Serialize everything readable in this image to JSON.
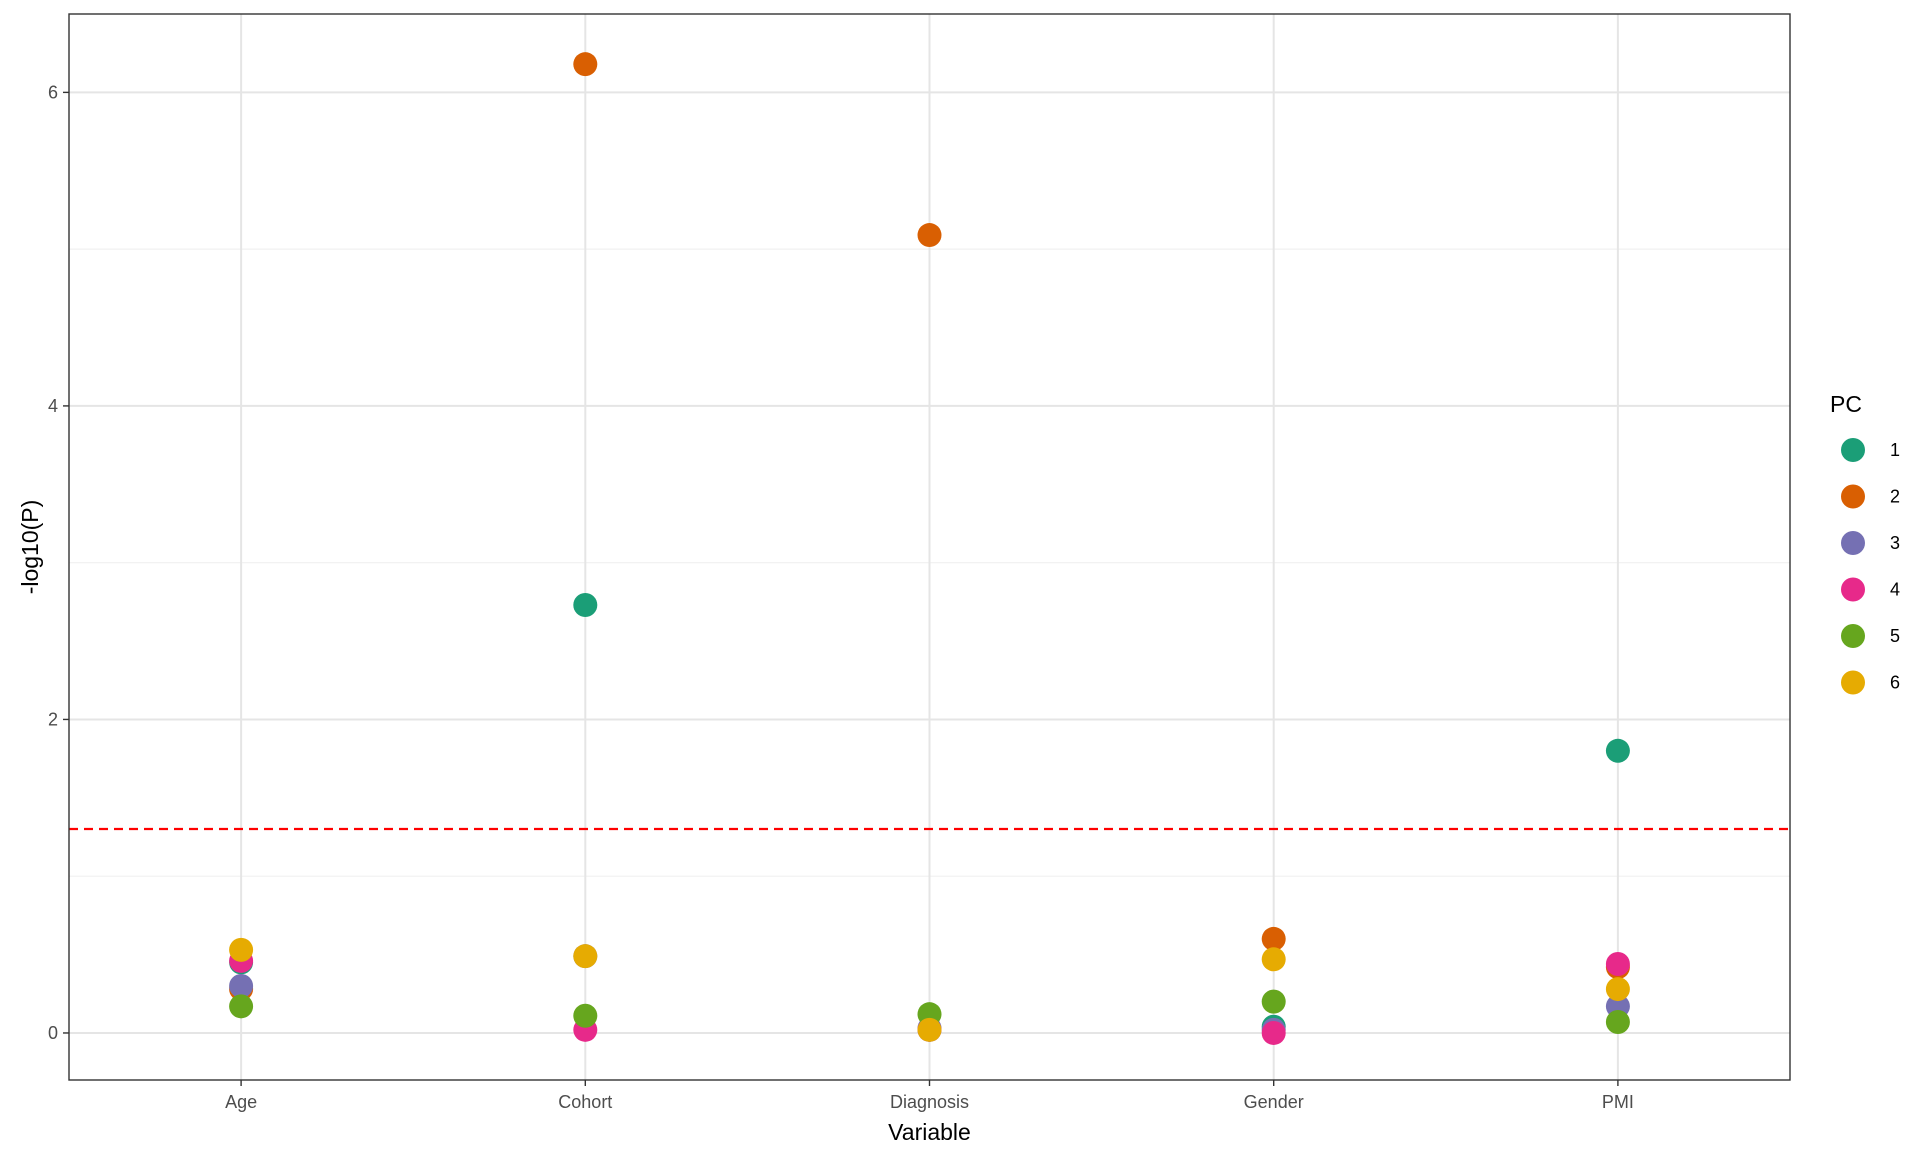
{
  "chart_data": {
    "type": "scatter",
    "xlabel": "Variable",
    "ylabel": "-log10(P)",
    "categories": [
      "Age",
      "Cohort",
      "Diagnosis",
      "Gender",
      "PMI"
    ],
    "ylim": [
      -0.3,
      6.5
    ],
    "yticks": [
      0,
      2,
      4,
      6
    ],
    "grid": true,
    "threshold": {
      "value": 1.301,
      "color": "#ff0000",
      "style": "dashed"
    },
    "legend": {
      "title": "PC",
      "placement": "right"
    },
    "series": [
      {
        "name": "1",
        "color": "#1b9e77",
        "values": [
          0.45,
          2.73,
          0.02,
          0.04,
          1.8
        ]
      },
      {
        "name": "2",
        "color": "#d95f02",
        "values": [
          0.28,
          6.18,
          5.09,
          0.6,
          0.42
        ]
      },
      {
        "name": "3",
        "color": "#7570b3",
        "values": [
          0.3,
          0.49,
          0.03,
          0.02,
          0.17
        ]
      },
      {
        "name": "4",
        "color": "#e7298a",
        "values": [
          0.46,
          0.02,
          0.02,
          0.0,
          0.44
        ]
      },
      {
        "name": "5",
        "color": "#66a61e",
        "values": [
          0.17,
          0.11,
          0.12,
          0.2,
          0.07
        ]
      },
      {
        "name": "6",
        "color": "#e6ab02",
        "values": [
          0.53,
          0.49,
          0.02,
          0.47,
          0.28
        ]
      }
    ]
  }
}
